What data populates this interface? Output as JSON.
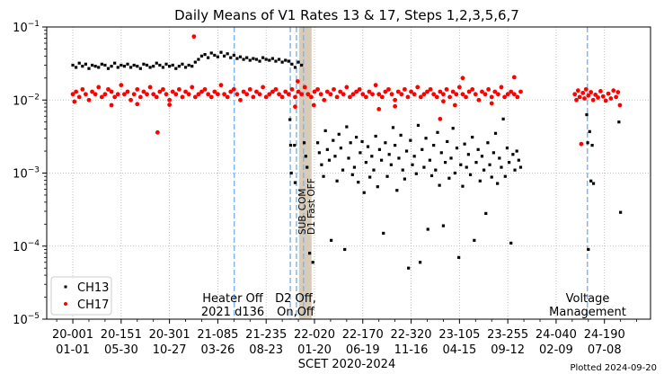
{
  "chart_data": {
    "type": "scatter",
    "title": "Daily Means of V1 Rates 13 & 17, Steps 1,2,3,5,6,7",
    "xlabel": "SCET 2020-2024",
    "ylabel": "",
    "yscale": "log",
    "ylim": [
      1e-05,
      0.1
    ],
    "xlim_days_since_2020_001": [
      -81,
      1793
    ],
    "grid": true,
    "legend_position": "lower-left",
    "y_tick_labels": [
      {
        "base": "10",
        "exp": "−1",
        "value": 0.1
      },
      {
        "base": "10",
        "exp": "−2",
        "value": 0.01
      },
      {
        "base": "10",
        "exp": "−3",
        "value": 0.001
      },
      {
        "base": "10",
        "exp": "−4",
        "value": 0.0001
      },
      {
        "base": "10",
        "exp": "−5",
        "value": 1e-05
      }
    ],
    "x_ticks": [
      {
        "day": 0,
        "label1": "20-001",
        "label2": "01-01"
      },
      {
        "day": 150,
        "label1": "20-151",
        "label2": "05-30"
      },
      {
        "day": 300,
        "label1": "20-301",
        "label2": "10-27"
      },
      {
        "day": 450,
        "label1": "21-085",
        "label2": "03-26"
      },
      {
        "day": 600,
        "label1": "21-235",
        "label2": "08-23"
      },
      {
        "day": 750,
        "label1": "22-020",
        "label2": "01-20"
      },
      {
        "day": 900,
        "label1": "22-170",
        "label2": "06-19"
      },
      {
        "day": 1050,
        "label1": "22-320",
        "label2": "11-16"
      },
      {
        "day": 1200,
        "label1": "23-105",
        "label2": "04-15"
      },
      {
        "day": 1350,
        "label1": "23-255",
        "label2": "09-12"
      },
      {
        "day": 1500,
        "label1": "24-040",
        "label2": "02-09"
      },
      {
        "day": 1650,
        "label1": "24-190",
        "label2": "07-08"
      }
    ],
    "event_lines_days": [
      501,
      675,
      694,
      716,
      1597
    ],
    "shaded_span_days": [
      702,
      741
    ],
    "annotations": {
      "heater_line1": "Heater Off",
      "heater_line2": "2021 d136",
      "d2_line1": "D2 Off,",
      "d2_line2": "On,Off",
      "sub_com": "SUB_COM",
      "d1_fast_off": "D1 Fast OFF",
      "voltage_line1": "Voltage",
      "voltage_line2": "Management"
    },
    "series": [
      {
        "name": "CH13",
        "color": "#000000",
        "marker": "square",
        "dense_start_day": 0,
        "dense_step_days": 10,
        "dense_values": [
          0.03,
          0.028,
          0.032,
          0.029,
          0.031,
          0.027,
          0.03,
          0.029,
          0.028,
          0.031,
          0.03,
          0.027,
          0.029,
          0.032,
          0.028,
          0.03,
          0.029,
          0.031,
          0.028,
          0.03,
          0.029,
          0.027,
          0.031,
          0.03,
          0.028,
          0.029,
          0.032,
          0.03,
          0.028,
          0.031,
          0.029,
          0.03,
          0.027,
          0.029,
          0.031,
          0.028,
          0.03,
          0.029,
          0.033,
          0.036,
          0.04,
          0.042,
          0.038,
          0.044,
          0.041,
          0.039,
          0.045,
          0.04,
          0.043,
          0.038,
          0.041,
          0.037,
          0.039,
          0.036,
          0.038,
          0.035,
          0.037,
          0.036,
          0.034,
          0.038,
          0.036,
          0.035,
          0.037,
          0.034,
          0.036,
          0.033,
          0.035,
          0.034,
          0.031,
          0.028,
          0.033,
          0.03
        ],
        "sparse_points": [
          [
            674,
            0.0054
          ],
          [
            676,
            0.0024
          ],
          [
            678,
            0.001
          ],
          [
            688,
            0.0024
          ],
          [
            690,
            0.00074
          ],
          [
            718,
            0.0026
          ],
          [
            723,
            0.0017
          ],
          [
            727,
            0.0012
          ],
          [
            735,
            8e-05
          ],
          [
            745,
            6e-05
          ],
          [
            760,
            0.0026
          ],
          [
            765,
            0.0019
          ],
          [
            772,
            0.0013
          ],
          [
            778,
            0.0009
          ],
          [
            784,
            0.0038
          ],
          [
            790,
            0.0021
          ],
          [
            796,
            0.0015
          ],
          [
            802,
            0.00012
          ],
          [
            808,
            0.0028
          ],
          [
            814,
            0.0017
          ],
          [
            820,
            0.00078
          ],
          [
            826,
            0.0034
          ],
          [
            832,
            0.0022
          ],
          [
            838,
            0.0011
          ],
          [
            844,
            9e-05
          ],
          [
            850,
            0.0043
          ],
          [
            856,
            0.0016
          ],
          [
            862,
            0.0026
          ],
          [
            868,
            0.00095
          ],
          [
            874,
            0.0012
          ],
          [
            880,
            0.0031
          ],
          [
            886,
            0.00075
          ],
          [
            892,
            0.0019
          ],
          [
            898,
            0.0027
          ],
          [
            904,
            0.00054
          ],
          [
            910,
            0.0014
          ],
          [
            916,
            0.0023
          ],
          [
            922,
            0.00088
          ],
          [
            928,
            0.0017
          ],
          [
            934,
            0.0011
          ],
          [
            940,
            0.0032
          ],
          [
            946,
            0.00065
          ],
          [
            952,
            0.0021
          ],
          [
            958,
            0.0015
          ],
          [
            964,
            0.00015
          ],
          [
            970,
            0.0026
          ],
          [
            976,
            0.0009
          ],
          [
            982,
            0.0018
          ],
          [
            988,
            0.0013
          ],
          [
            994,
            0.0042
          ],
          [
            1000,
            0.0024
          ],
          [
            1006,
            0.00058
          ],
          [
            1012,
            0.0016
          ],
          [
            1018,
            0.0033
          ],
          [
            1024,
            0.0011
          ],
          [
            1030,
            0.00083
          ],
          [
            1036,
            0.002
          ],
          [
            1042,
            5e-05
          ],
          [
            1048,
            0.0028
          ],
          [
            1054,
            0.0013
          ],
          [
            1060,
            0.0017
          ],
          [
            1066,
            0.00098
          ],
          [
            1072,
            0.0045
          ],
          [
            1078,
            6e-05
          ],
          [
            1084,
            0.0021
          ],
          [
            1090,
            0.0012
          ],
          [
            1096,
            0.003
          ],
          [
            1102,
            0.00017
          ],
          [
            1108,
            0.0015
          ],
          [
            1114,
            0.00092
          ],
          [
            1120,
            0.0024
          ],
          [
            1126,
            0.0011
          ],
          [
            1132,
            0.0036
          ],
          [
            1138,
            0.00068
          ],
          [
            1144,
            0.0019
          ],
          [
            1150,
            0.00019
          ],
          [
            1156,
            0.0014
          ],
          [
            1162,
            0.0027
          ],
          [
            1168,
            0.00085
          ],
          [
            1174,
            0.0016
          ],
          [
            1180,
            0.0041
          ],
          [
            1186,
            0.001
          ],
          [
            1192,
            0.0022
          ],
          [
            1198,
            7e-05
          ],
          [
            1204,
            0.0013
          ],
          [
            1210,
            0.00066
          ],
          [
            1216,
            0.0025
          ],
          [
            1222,
            0.0012
          ],
          [
            1228,
            0.0018
          ],
          [
            1234,
            0.00095
          ],
          [
            1240,
            0.0031
          ],
          [
            1246,
            0.00012
          ],
          [
            1252,
            0.0014
          ],
          [
            1258,
            0.0021
          ],
          [
            1264,
            0.00078
          ],
          [
            1270,
            0.0017
          ],
          [
            1276,
            0.0011
          ],
          [
            1282,
            0.00028
          ],
          [
            1288,
            0.0026
          ],
          [
            1294,
            0.0013
          ],
          [
            1300,
            0.00088
          ],
          [
            1306,
            0.0019
          ],
          [
            1312,
            0.0035
          ],
          [
            1318,
            0.00072
          ],
          [
            1324,
            0.0016
          ],
          [
            1330,
            0.0012
          ],
          [
            1336,
            0.0055
          ],
          [
            1342,
            0.0009
          ],
          [
            1348,
            0.0022
          ],
          [
            1354,
            0.0014
          ],
          [
            1360,
            0.00011
          ],
          [
            1366,
            0.0018
          ],
          [
            1372,
            0.0011
          ],
          [
            1378,
            0.002
          ],
          [
            1384,
            0.0015
          ],
          [
            1390,
            0.0012
          ],
          [
            1595,
            0.0063
          ],
          [
            1598,
            0.0026
          ],
          [
            1600,
            9e-05
          ],
          [
            1604,
            0.0037
          ],
          [
            1608,
            0.00078
          ],
          [
            1612,
            0.0024
          ],
          [
            1616,
            0.00072
          ],
          [
            1695,
            0.005
          ],
          [
            1700,
            0.00029
          ]
        ]
      },
      {
        "name": "CH17",
        "color": "#ff0000",
        "marker": "circle",
        "dense_start_day": 0,
        "dense_step_days": 10,
        "dense_values": [
          0.012,
          0.013,
          0.011,
          0.014,
          0.012,
          0.01,
          0.013,
          0.012,
          0.015,
          0.011,
          0.012,
          0.014,
          0.013,
          0.011,
          0.012,
          0.016,
          0.012,
          0.013,
          0.01,
          0.012,
          0.014,
          0.011,
          0.013,
          0.012,
          0.015,
          0.012,
          0.011,
          0.013,
          0.014,
          0.012,
          0.01,
          0.013,
          0.012,
          0.014,
          0.011,
          0.013,
          0.012,
          0.015,
          0.011,
          0.012,
          0.013,
          0.014,
          0.012,
          0.011,
          0.013,
          0.012,
          0.016,
          0.012,
          0.011,
          0.013,
          0.014,
          0.012,
          0.01,
          0.013,
          0.012,
          0.014,
          0.011,
          0.013,
          0.012,
          0.015,
          0.011,
          0.012,
          0.013,
          0.014,
          0.012,
          0.011,
          0.013,
          0.012,
          0.014,
          0.011,
          0.013,
          0.012,
          0.015,
          0.012,
          0.011,
          0.013,
          0.014,
          0.012,
          0.01,
          0.013,
          0.012,
          0.014,
          0.011,
          0.013,
          0.012,
          0.015,
          0.011,
          0.012,
          0.013,
          0.014,
          0.012,
          0.011,
          0.013,
          0.012,
          0.016,
          0.012,
          0.011,
          0.013,
          0.014,
          0.012,
          0.01,
          0.013,
          0.012,
          0.014,
          0.011,
          0.013,
          0.012,
          0.015,
          0.011,
          0.012,
          0.013,
          0.014,
          0.012,
          0.011,
          0.013,
          0.012,
          0.014,
          0.011,
          0.013,
          0.012,
          0.015,
          0.012,
          0.011,
          0.013,
          0.014,
          0.012,
          0.01,
          0.013,
          0.012,
          0.014,
          0.011,
          0.013,
          0.012,
          0.015,
          0.011,
          0.012,
          0.013,
          0.012,
          0.011,
          0.013
        ],
        "sparse_points": [
          [
            263,
            0.0036
          ],
          [
            376,
            0.074
          ],
          [
            5,
            0.0095
          ],
          [
            120,
            0.0085
          ],
          [
            200,
            0.0088
          ],
          [
            300,
            0.0086
          ],
          [
            690,
            0.0081
          ],
          [
            698,
            0.018
          ],
          [
            748,
            0.0085
          ],
          [
            950,
            0.0075
          ],
          [
            1000,
            0.0082
          ],
          [
            1140,
            0.0055
          ],
          [
            1150,
            0.0096
          ],
          [
            1186,
            0.0085
          ],
          [
            1210,
            0.02
          ],
          [
            1370,
            0.0205
          ],
          [
            1300,
            0.009
          ],
          [
            1558,
            0.012
          ],
          [
            1563,
            0.01
          ],
          [
            1568,
            0.0135
          ],
          [
            1573,
            0.011
          ],
          [
            1578,
            0.0025
          ],
          [
            1583,
            0.0125
          ],
          [
            1588,
            0.0105
          ],
          [
            1593,
            0.014
          ],
          [
            1600,
            0.0115
          ],
          [
            1608,
            0.0128
          ],
          [
            1615,
            0.01
          ],
          [
            1622,
            0.0118
          ],
          [
            1630,
            0.0108
          ],
          [
            1638,
            0.0132
          ],
          [
            1646,
            0.0112
          ],
          [
            1654,
            0.0098
          ],
          [
            1662,
            0.0122
          ],
          [
            1670,
            0.0105
          ],
          [
            1678,
            0.0135
          ],
          [
            1686,
            0.011
          ],
          [
            1692,
            0.0128
          ],
          [
            1698,
            0.0085
          ]
        ]
      }
    ]
  },
  "footer": {
    "plotted": "Plotted 2024-09-20"
  }
}
